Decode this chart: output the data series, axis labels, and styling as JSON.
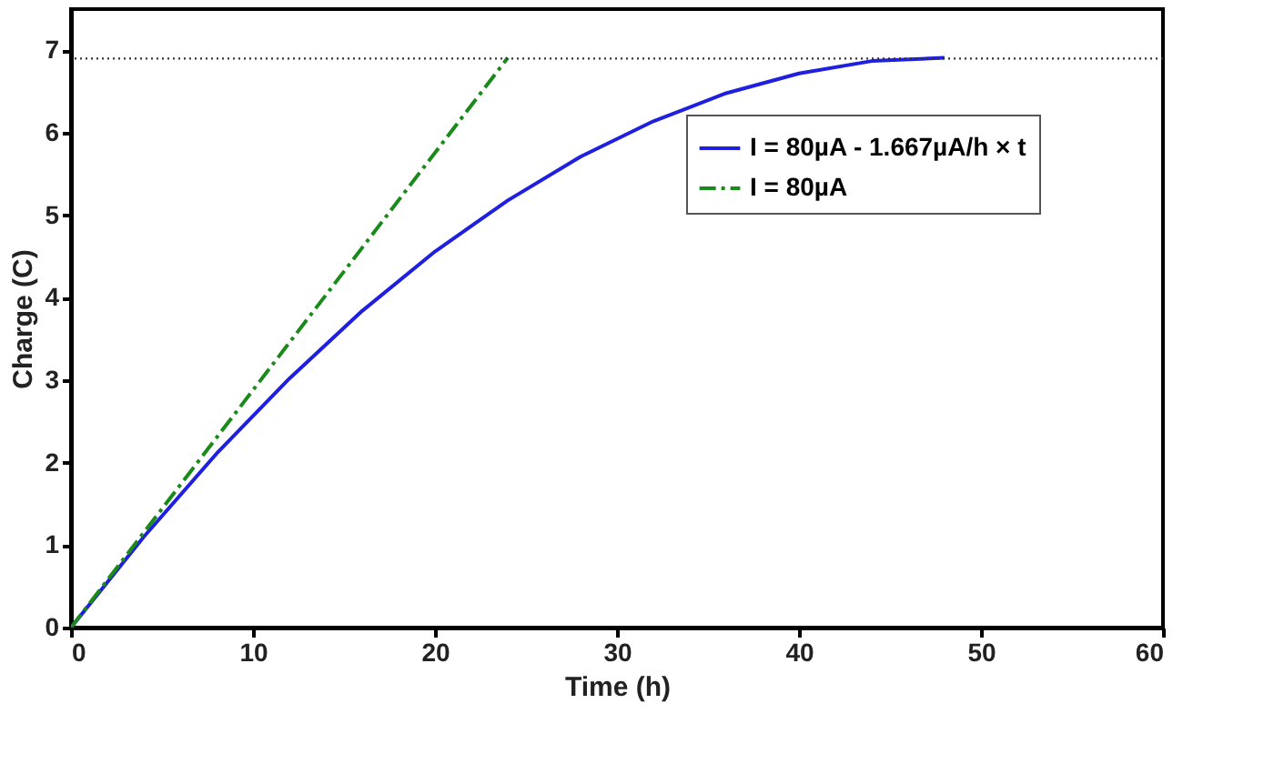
{
  "chart_data": {
    "type": "line",
    "xlabel": "Time (h)",
    "ylabel": "Charge (C)",
    "xlim": [
      0,
      60
    ],
    "xticks": [
      0,
      10,
      20,
      30,
      40,
      50,
      60
    ],
    "ylim": [
      0,
      7.5
    ],
    "yticks": [
      0,
      1,
      2,
      3,
      4,
      5,
      6,
      7
    ],
    "grid": false,
    "legend": "top right",
    "ref_lines": [
      {
        "axis": "y",
        "value": 6.9,
        "color": "#333333",
        "line_style": "dotted"
      }
    ],
    "series": [
      {
        "name": "I = 80µA - 1.667µA/h × t",
        "color": "#1f1fe0",
        "line_style": "solid",
        "x": [
          0,
          4,
          8,
          12,
          16,
          20,
          24,
          28,
          32,
          36,
          40,
          44,
          48
        ],
        "values": [
          0,
          1.1,
          2.11,
          3.02,
          3.84,
          4.56,
          5.18,
          5.71,
          6.14,
          6.48,
          6.72,
          6.87,
          6.91
        ]
      },
      {
        "name": "I = 80µA",
        "color": "#1a8a1a",
        "line_style": "dashed",
        "x": [
          0,
          24
        ],
        "values": [
          0,
          6.91
        ]
      }
    ]
  }
}
